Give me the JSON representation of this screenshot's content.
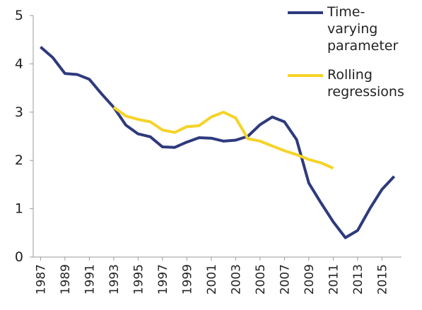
{
  "chart_data": {
    "type": "line",
    "x": [
      1987,
      1988,
      1989,
      1990,
      1991,
      1992,
      1993,
      1994,
      1995,
      1996,
      1997,
      1998,
      1999,
      2000,
      2001,
      2002,
      2003,
      2004,
      2005,
      2006,
      2007,
      2008,
      2009,
      2010,
      2011,
      2012,
      2013,
      2014,
      2015,
      2016
    ],
    "series": [
      {
        "name": "Time-varying parameter",
        "color": "#2e3a7c",
        "values": [
          4.35,
          4.13,
          3.8,
          3.78,
          3.68,
          3.38,
          3.1,
          2.73,
          2.55,
          2.49,
          2.28,
          2.27,
          2.38,
          2.47,
          2.46,
          2.4,
          2.42,
          2.5,
          2.74,
          2.9,
          2.8,
          2.43,
          1.53,
          1.12,
          0.73,
          0.4,
          0.55,
          1.0,
          1.4,
          1.67
        ]
      },
      {
        "name": "Rolling regressions",
        "color": "#f5d327",
        "values": [
          null,
          null,
          null,
          null,
          null,
          null,
          3.1,
          2.92,
          2.85,
          2.8,
          2.63,
          2.58,
          2.7,
          2.72,
          2.9,
          3.0,
          2.88,
          2.45,
          2.4,
          2.3,
          2.2,
          2.12,
          2.02,
          1.95,
          1.84,
          null,
          null,
          null,
          null,
          null
        ]
      }
    ],
    "xlim": [
      1986.4,
      2016.6
    ],
    "xticks": [
      1987,
      1989,
      1991,
      1993,
      1995,
      1997,
      1999,
      2001,
      2003,
      2005,
      2007,
      2009,
      2011,
      2013,
      2015
    ],
    "ylim": [
      0,
      5
    ],
    "yticks": [
      0,
      1,
      2,
      3,
      4,
      5
    ],
    "grid": false,
    "legend": "top-right"
  }
}
